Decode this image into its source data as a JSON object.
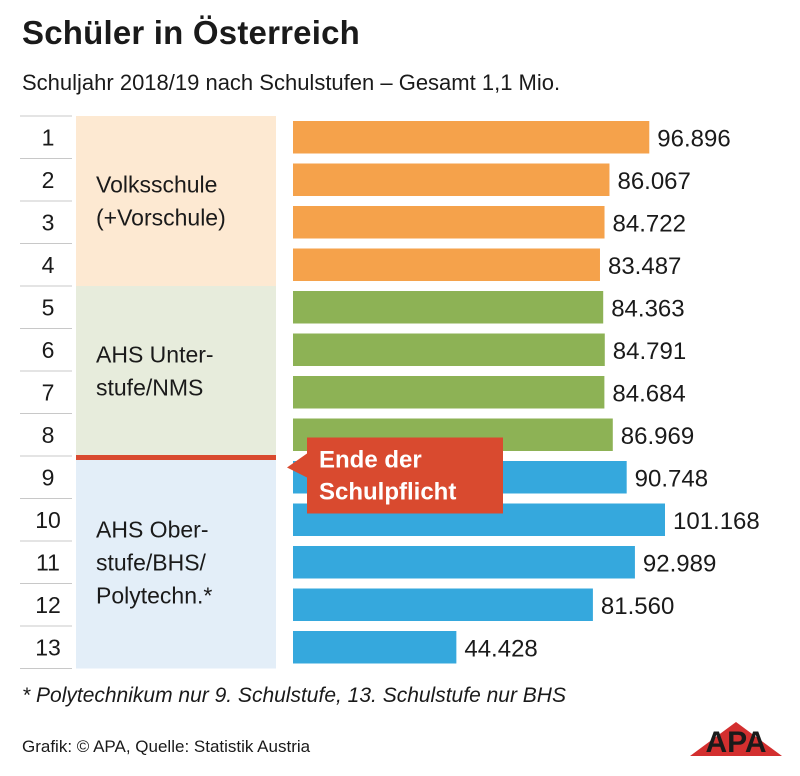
{
  "title": "Schüler in Österreich",
  "subtitle": "Schuljahr 2018/19 nach Schulstufen – Gesamt 1,1 Mio.",
  "colors": {
    "orange": "#f5a24b",
    "green": "#8db255",
    "blue": "#35a8dd",
    "bg_orange": "#fde9d2",
    "bg_green": "#e7ecdc",
    "bg_blue": "#e3eef8",
    "red": "#d94a2f",
    "grid": "#c8c8c8"
  },
  "chart_data": {
    "type": "bar",
    "orientation": "horizontal",
    "categories": [
      "1",
      "2",
      "3",
      "4",
      "5",
      "6",
      "7",
      "8",
      "9",
      "10",
      "11",
      "12",
      "13"
    ],
    "values": [
      96896,
      86067,
      84722,
      83487,
      84363,
      84791,
      84684,
      86969,
      90748,
      101168,
      92989,
      81560,
      44428
    ],
    "value_labels": [
      "96.896",
      "86.067",
      "84.722",
      "83.487",
      "84.363",
      "84.791",
      "84.684",
      "86.969",
      "90.748",
      "101.168",
      "92.989",
      "81.560",
      "44.428"
    ],
    "xlim": [
      0,
      101168
    ],
    "groups": [
      {
        "label_lines": [
          "Volksschule",
          "(+Vorschule)"
        ],
        "from": 0,
        "to": 3,
        "color": "orange"
      },
      {
        "label_lines": [
          "AHS Unter-",
          "stufe/NMS"
        ],
        "from": 4,
        "to": 7,
        "color": "green"
      },
      {
        "label_lines": [
          "AHS Ober-",
          "stufe/BHS/",
          "Polytechn.*"
        ],
        "from": 8,
        "to": 12,
        "color": "blue"
      }
    ],
    "annotation": {
      "lines": [
        "Ende der",
        "Schulpflicht"
      ],
      "after_index": 8
    }
  },
  "footnote": "* Polytechnikum nur 9. Schulstufe, 13. Schulstufe nur BHS",
  "source": "Grafik: © APA, Quelle: Statistik Austria",
  "logo_text": "APA"
}
